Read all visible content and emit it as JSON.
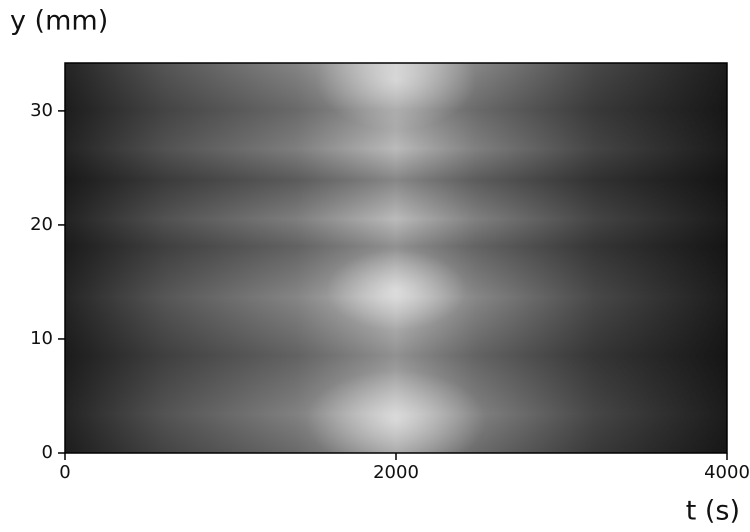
{
  "chart_data": {
    "type": "image",
    "ylabel": "y (mm)",
    "xlabel": "t (s)",
    "xlim": [
      0,
      4000
    ],
    "xticks": [
      0,
      2000,
      4000
    ],
    "ylim": [
      0,
      34.2
    ],
    "yticks": [
      0,
      10,
      20,
      30
    ]
  }
}
